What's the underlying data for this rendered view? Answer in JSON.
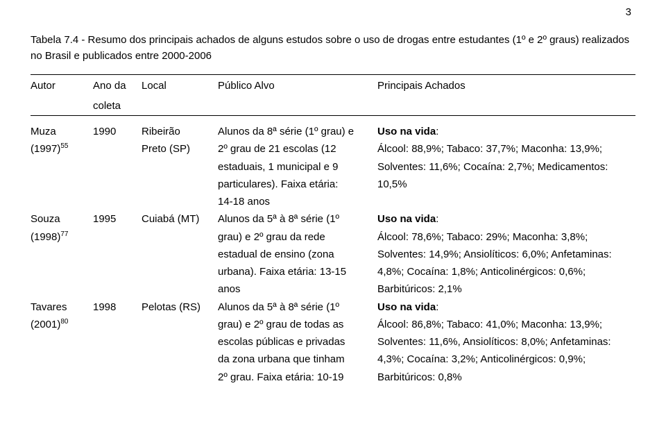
{
  "page_number": "3",
  "caption": "Tabela 7.4 - Resumo dos principais achados de alguns estudos sobre o uso de drogas entre estudantes (1º e 2º graus) realizados no Brasil e publicados entre 2000-2006",
  "headers": {
    "author": "Autor",
    "year_l1": "Ano da",
    "year_l2": "coleta",
    "local": "Local",
    "publico": "Público Alvo",
    "achados": "Principais Achados"
  },
  "rows": [
    {
      "author_l1": "Muza",
      "author_l2_pre": "(1997)",
      "author_l2_sup": "55",
      "year": "1990",
      "local_l1": "Ribeirão",
      "local_l2": "Preto (SP)",
      "publico": [
        "Alunos da 8ª série (1º grau) e",
        "2º grau de 21 escolas (12",
        "estaduais, 1 municipal e 9",
        "particulares). Faixa etária:",
        "14-18 anos"
      ],
      "achados_lead": "Uso na vida",
      "achados_colon": ":",
      "achados": [
        "Álcool: 88,9%; Tabaco: 37,7%; Maconha: 13,9%;",
        "Solventes: 11,6%; Cocaína: 2,7%; Medicamentos:",
        "10,5%",
        ""
      ]
    },
    {
      "author_l1": "Souza",
      "author_l2_pre": "(1998)",
      "author_l2_sup": "77",
      "year": "1995",
      "local_l1": "Cuiabá (MT)",
      "local_l2": "",
      "publico": [
        "Alunos da 5ª à 8ª série (1º",
        "grau) e 2º grau da rede",
        "estadual de ensino (zona",
        "urbana). Faixa etária: 13-15",
        "anos"
      ],
      "achados_lead": "Uso na vida",
      "achados_colon": ":",
      "achados": [
        "Álcool: 78,6%; Tabaco: 29%; Maconha: 3,8%;",
        "Solventes: 14,9%; Ansiolíticos: 6,0%; Anfetaminas:",
        "4,8%; Cocaína: 1,8%; Anticolinérgicos: 0,6%;",
        "Barbitúricos: 2,1%"
      ]
    },
    {
      "author_l1": "Tavares",
      "author_l2_pre": "(2001)",
      "author_l2_sup": "80",
      "year": "1998",
      "local_l1": "Pelotas (RS)",
      "local_l2": "",
      "publico": [
        "Alunos da 5ª  à 8ª série (1º",
        "grau) e 2º grau de todas as",
        "escolas públicas e privadas",
        "da zona urbana que tinham",
        "2º grau. Faixa etária: 10-19"
      ],
      "achados_lead": "Uso na vida",
      "achados_colon": ":",
      "achados": [
        "Álcool: 86,8%; Tabaco: 41,0%; Maconha: 13,9%;",
        "Solventes: 11,6%, Ansiolíticos: 8,0%; Anfetaminas:",
        "4,3%; Cocaína: 3,2%; Anticolinérgicos: 0,9%;",
        "Barbitúricos: 0,8%"
      ]
    }
  ]
}
